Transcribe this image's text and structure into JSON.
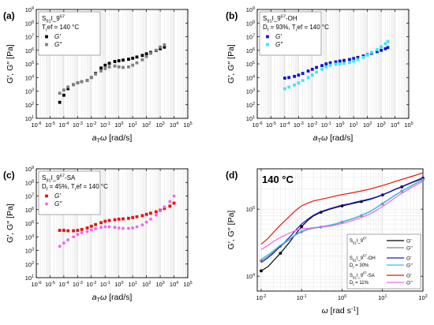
{
  "chart_data": [
    {
      "id": "a",
      "panel_label": "(a)",
      "type": "scatter",
      "xscale": "log",
      "yscale": "log",
      "xlim": [
        1e-06,
        100000.0
      ],
      "ylim": [
        10.0,
        1000000000.0
      ],
      "xticks": [
        "10-6",
        "10-5",
        "10-4",
        "10-3",
        "10-2",
        "10-1",
        "100",
        "101",
        "102",
        "103",
        "104",
        "105"
      ],
      "yticks": [
        "101",
        "102",
        "103",
        "104",
        "105",
        "106",
        "107",
        "108",
        "109"
      ],
      "xlabel": "a_T ω [rad/s]",
      "ylabel": "G′, G′′ [Pa]",
      "grid": true,
      "legend_position": "top-left",
      "legend_lines": [
        "S_{91}I_9^{67}",
        "T_ref = 140 °C"
      ],
      "series": [
        {
          "name": "G′",
          "color": "#000000",
          "marker": "square",
          "x": [
            5e-05,
            0.0001,
            0.0002,
            0.0005,
            0.001,
            0.002,
            0.005,
            0.01,
            0.02,
            0.05,
            0.1,
            0.2,
            0.5,
            1,
            2,
            5,
            10,
            20,
            50,
            100,
            200,
            500,
            1000,
            2000
          ],
          "y": [
            150,
            500,
            1500,
            3000,
            4000,
            5000,
            6000,
            10000,
            20000,
            50000,
            80000,
            110000,
            150000,
            170000,
            190000,
            220000,
            260000,
            320000,
            420000,
            550000,
            700000,
            950000,
            1300000,
            1700000
          ]
        },
        {
          "name": "G′′",
          "color": "#808080",
          "marker": "square",
          "x": [
            5e-05,
            0.0001,
            0.0002,
            0.0005,
            0.001,
            0.002,
            0.005,
            0.01,
            0.02,
            0.05,
            0.1,
            0.2,
            0.5,
            1,
            2,
            5,
            10,
            20,
            50,
            100,
            200,
            500,
            1000,
            2000
          ],
          "y": [
            700,
            1200,
            2000,
            3000,
            4000,
            5000,
            6000,
            10000,
            18000,
            30000,
            45000,
            60000,
            70000,
            60000,
            55000,
            60000,
            80000,
            120000,
            200000,
            350000,
            600000,
            1000000,
            1700000,
            2500000
          ]
        }
      ]
    },
    {
      "id": "b",
      "panel_label": "(b)",
      "type": "scatter",
      "xscale": "log",
      "yscale": "log",
      "xlim": [
        1e-06,
        100000.0
      ],
      "ylim": [
        10.0,
        1000000000.0
      ],
      "xticks": [
        "10-6",
        "10-5",
        "10-4",
        "10-3",
        "10-2",
        "10-1",
        "100",
        "101",
        "102",
        "103",
        "104",
        "105"
      ],
      "yticks": [
        "101",
        "102",
        "103",
        "104",
        "105",
        "106",
        "107",
        "108",
        "109"
      ],
      "xlabel": "a_T ω [rad/s]",
      "ylabel": "G′, G′′ [Pa]",
      "grid": true,
      "legend_position": "top-left",
      "legend_lines": [
        "S_{91}I_9^{67}-OH",
        "D_f = 93%, T_ref = 140 °C"
      ],
      "series": [
        {
          "name": "G′",
          "color": "#1414d2",
          "marker": "square",
          "x": [
            0.0001,
            0.0002,
            0.0005,
            0.001,
            0.002,
            0.005,
            0.01,
            0.02,
            0.05,
            0.1,
            0.2,
            0.5,
            1,
            2,
            5,
            10,
            20,
            50,
            100,
            200,
            500,
            1000,
            2000,
            3000
          ],
          "y": [
            9000,
            10000,
            12000,
            15000,
            20000,
            30000,
            40000,
            55000,
            75000,
            100000,
            120000,
            140000,
            160000,
            180000,
            210000,
            250000,
            300000,
            380000,
            480000,
            600000,
            800000,
            1000000,
            1300000,
            1600000
          ]
        },
        {
          "name": "G′′",
          "color": "#3ce6f5",
          "marker": "square",
          "x": [
            0.0001,
            0.0002,
            0.0005,
            0.001,
            0.002,
            0.005,
            0.01,
            0.02,
            0.05,
            0.1,
            0.2,
            0.5,
            1,
            2,
            5,
            10,
            20,
            50,
            100,
            200,
            500,
            1000,
            2000,
            3000
          ],
          "y": [
            1500,
            2000,
            2800,
            4000,
            6000,
            10000,
            15000,
            25000,
            40000,
            60000,
            80000,
            95000,
            100000,
            110000,
            130000,
            160000,
            210000,
            300000,
            450000,
            700000,
            1100000,
            1800000,
            3000000,
            4500000
          ]
        }
      ]
    },
    {
      "id": "c",
      "panel_label": "(c)",
      "type": "scatter",
      "xscale": "log",
      "yscale": "log",
      "xlim": [
        1e-06,
        100000.0
      ],
      "ylim": [
        10.0,
        1000000000.0
      ],
      "xticks": [
        "10-6",
        "10-5",
        "10-4",
        "10-3",
        "10-2",
        "10-1",
        "100",
        "101",
        "102",
        "103",
        "104",
        "105"
      ],
      "yticks": [
        "101",
        "102",
        "103",
        "104",
        "105",
        "106",
        "107",
        "108",
        "109"
      ],
      "xlabel": "a_T ω [rad/s]",
      "ylabel": "G′, G′′ [Pa]",
      "grid": true,
      "legend_position": "top-left",
      "legend_lines": [
        "S_{91}I_9^{67}-SA",
        "D_f = 45%, T_ref = 140 °C"
      ],
      "series": [
        {
          "name": "G′",
          "color": "#e61414",
          "marker": "square",
          "x": [
            5e-05,
            0.0001,
            0.0002,
            0.0005,
            0.001,
            0.002,
            0.005,
            0.01,
            0.02,
            0.05,
            0.1,
            0.2,
            0.5,
            1,
            2,
            5,
            10,
            20,
            50,
            100,
            200,
            500,
            1000,
            2000,
            5000,
            10000
          ],
          "y": [
            30000,
            30000,
            28000,
            28000,
            30000,
            35000,
            45000,
            60000,
            80000,
            110000,
            140000,
            160000,
            180000,
            200000,
            210000,
            230000,
            260000,
            300000,
            360000,
            450000,
            550000,
            700000,
            900000,
            1200000,
            1800000,
            3000000
          ]
        },
        {
          "name": "G′′",
          "color": "#f064f0",
          "marker": "circle",
          "x": [
            5e-05,
            0.0001,
            0.0002,
            0.0005,
            0.001,
            0.002,
            0.005,
            0.01,
            0.02,
            0.05,
            0.1,
            0.2,
            0.5,
            1,
            2,
            5,
            10,
            20,
            50,
            100,
            200,
            500,
            1000,
            2000,
            5000,
            10000
          ],
          "y": [
            2000,
            3500,
            6000,
            10000,
            15000,
            20000,
            25000,
            32000,
            40000,
            50000,
            55000,
            55000,
            50000,
            45000,
            42000,
            42000,
            45000,
            55000,
            75000,
            120000,
            200000,
            400000,
            800000,
            1600000,
            4000000,
            10000000
          ]
        }
      ]
    },
    {
      "id": "d",
      "panel_label": "(d)",
      "type": "line",
      "xscale": "log",
      "yscale": "log",
      "xlim": [
        0.008,
        100
      ],
      "ylim": [
        6000,
        400000
      ],
      "xticks": [
        "10-2",
        "10-1",
        "100",
        "101",
        "102"
      ],
      "yticks": [
        "104",
        "105"
      ],
      "xlabel": "ω [rad s-1]",
      "ylabel": "G′, G′′ [Pa]",
      "grid": true,
      "annotation": "140 °C",
      "legend_position": "bottom-right",
      "legend_groups": [
        {
          "label_lines": [
            "S_{91}I_9^{67}"
          ],
          "entries": [
            "G′",
            "G′′"
          ]
        },
        {
          "label_lines": [
            "S_{91}I_9^{67}-OH",
            "D_f = 30%"
          ],
          "entries": [
            "G′",
            "G′′"
          ]
        },
        {
          "label_lines": [
            "S_{91}I_9^{67}-SA",
            "D_f = 11%"
          ],
          "entries": [
            "G′",
            "G′′"
          ]
        }
      ],
      "x": [
        0.01,
        0.015,
        0.02,
        0.03,
        0.05,
        0.07,
        0.1,
        0.15,
        0.2,
        0.3,
        0.5,
        0.7,
        1,
        1.5,
        2,
        3,
        5,
        7,
        10,
        15,
        20,
        30,
        50,
        70,
        100
      ],
      "series": [
        {
          "name": "G′",
          "group": 0,
          "color": "#000000",
          "marker": "circle",
          "y": [
            12000,
            14000,
            17000,
            22000,
            32000,
            42000,
            55000,
            70000,
            80000,
            90000,
            100000,
            106000,
            112000,
            118000,
            123000,
            130000,
            140000,
            150000,
            163000,
            180000,
            195000,
            215000,
            245000,
            265000,
            290000
          ]
        },
        {
          "name": "G′′",
          "group": 0,
          "color": "#888888",
          "marker": "circle",
          "y": [
            17000,
            20000,
            23000,
            28000,
            35000,
            41000,
            46000,
            50000,
            52000,
            54000,
            57000,
            60000,
            64000,
            69000,
            73000,
            80000,
            92000,
            105000,
            120000,
            142000,
            160000,
            185000,
            220000,
            245000,
            275000
          ]
        },
        {
          "name": "G′",
          "group": 1,
          "color": "#1c1ccc",
          "marker": "none",
          "y": [
            16000,
            19000,
            22000,
            28000,
            38000,
            48000,
            60000,
            73000,
            82000,
            92000,
            102000,
            108000,
            115000,
            120000,
            126000,
            133000,
            143000,
            152000,
            165000,
            182000,
            197000,
            218000,
            248000,
            270000,
            295000
          ]
        },
        {
          "name": "G′′",
          "group": 1,
          "color": "#2ec8e8",
          "marker": "none",
          "y": [
            18000,
            21000,
            24000,
            29000,
            36000,
            42000,
            47000,
            51000,
            53000,
            55000,
            58000,
            61000,
            65000,
            70000,
            74000,
            81000,
            93000,
            106000,
            122000,
            144000,
            162000,
            187000,
            222000,
            248000,
            278000
          ]
        },
        {
          "name": "G′",
          "group": 2,
          "color": "#e61414",
          "marker": "none",
          "y": [
            30000,
            37000,
            45000,
            58000,
            78000,
            95000,
            112000,
            125000,
            133000,
            140000,
            150000,
            158000,
            165000,
            172000,
            178000,
            187000,
            200000,
            212000,
            225000,
            243000,
            258000,
            278000,
            305000,
            325000,
            350000
          ]
        },
        {
          "name": "G′′",
          "group": 2,
          "color": "#f064f0",
          "marker": "none",
          "y": [
            25000,
            29000,
            33000,
            38000,
            44000,
            48000,
            51000,
            52000,
            53000,
            54000,
            56000,
            58000,
            61000,
            65000,
            69000,
            75000,
            85000,
            96000,
            110000,
            130000,
            147000,
            172000,
            207000,
            232000,
            262000
          ]
        }
      ]
    }
  ]
}
